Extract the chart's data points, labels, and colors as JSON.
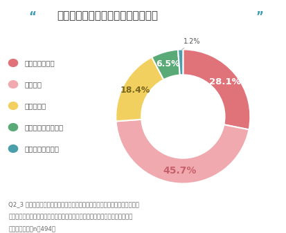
{
  "title_quotes": "“",
  "title_main": "プログラミング教育は楽しかったか",
  "title_quote_close": "”",
  "title_color": "#3a9ab0",
  "title_text_color": "#333333",
  "values": [
    28.1,
    45.7,
    18.4,
    6.5,
    1.2
  ],
  "labels": [
    "とてもそう思う",
    "そう思う",
    "わからない",
    "あまりそう思わない",
    "全くそう思わない"
  ],
  "colors": [
    "#e0737a",
    "#f0aaaf",
    "#f2d060",
    "#5aaa78",
    "#4a9faa"
  ],
  "pct_labels": [
    "28.1%",
    "45.7%",
    "18.4%",
    "6.5%",
    "1.2%"
  ],
  "pct_label_colors": [
    "#ffffff",
    "#c8606a",
    "#7a6820",
    "#ffffff",
    "#555555"
  ],
  "startangle": 90,
  "footnote_lines": [
    "Q2_3 「プログラミングを経験したことがある」お子様にお伃いします。プロ",
    "グラミングの授業を楽しいと感じていましたか？当てはまるものを一つ選択し",
    "てください。（n＝494）"
  ],
  "background_color": "#ffffff"
}
